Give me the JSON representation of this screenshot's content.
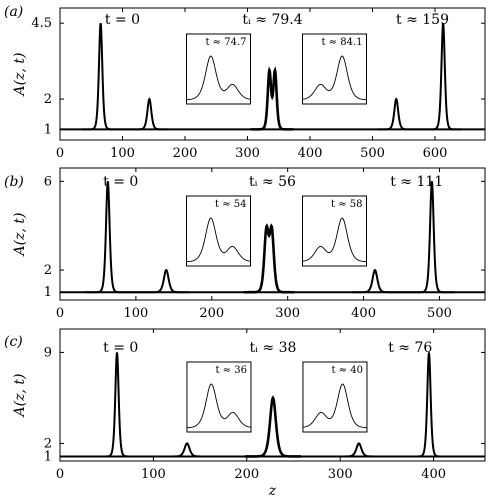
{
  "chart_data": [
    {
      "type": "line",
      "panel_label": "(a)",
      "ylabel": "A(z, t)",
      "xlabel": "",
      "xlim": [
        0,
        680
      ],
      "ylim": [
        0.65,
        5.0
      ],
      "xticks": [
        0,
        100,
        200,
        300,
        400,
        500,
        600
      ],
      "yticks": [
        1,
        2,
        4.5
      ],
      "ytick_labels": [
        "1",
        "2",
        "4.5"
      ],
      "annotations": [
        {
          "text": "t = 0",
          "x": 100
        },
        {
          "text": "tᵢ ≈ 79.4",
          "x": 340
        },
        {
          "text": "t ≈ 159",
          "x": 580
        }
      ],
      "series": [
        {
          "label": "t = 0",
          "peaks": [
            {
              "x": 65,
              "amp": 4.5,
              "width": 3.6
            },
            {
              "x": 143,
              "amp": 2.0,
              "width": 4.2
            }
          ]
        },
        {
          "label": "tᵢ ≈ 79.4",
          "peaks": [
            {
              "x": 335,
              "amp": 2.9,
              "width": 3.6
            },
            {
              "x": 344,
              "amp": 2.9,
              "width": 3.6
            }
          ]
        },
        {
          "label": "t ≈ 159",
          "peaks": [
            {
              "x": 538,
              "amp": 2.0,
              "width": 4.2
            },
            {
              "x": 613,
              "amp": 4.5,
              "width": 3.6
            }
          ]
        }
      ],
      "baseline": 1,
      "insets": [
        {
          "text": "t ≈ 74.7",
          "shape": "left-tall"
        },
        {
          "text": "t ≈ 84.1",
          "shape": "right-tall"
        }
      ]
    },
    {
      "type": "line",
      "panel_label": "(b)",
      "ylabel": "A(z, t)",
      "xlabel": "",
      "xlim": [
        0,
        560
      ],
      "ylim": [
        0.65,
        6.6
      ],
      "xticks": [
        0,
        100,
        200,
        300,
        400,
        500
      ],
      "yticks": [
        1,
        2,
        6
      ],
      "ytick_labels": [
        "1",
        "2",
        "6"
      ],
      "annotations": [
        {
          "text": "t = 0",
          "x": 80
        },
        {
          "text": "tᵢ ≈ 56",
          "x": 280
        },
        {
          "text": "t ≈ 111",
          "x": 470
        }
      ],
      "series": [
        {
          "label": "t = 0",
          "peaks": [
            {
              "x": 63,
              "amp": 6.0,
              "width": 3.2
            },
            {
              "x": 140,
              "amp": 2.0,
              "width": 4.2
            }
          ]
        },
        {
          "label": "tᵢ ≈ 56",
          "peaks": [
            {
              "x": 272,
              "amp": 3.7,
              "width": 3.8
            },
            {
              "x": 279,
              "amp": 3.7,
              "width": 3.8
            }
          ]
        },
        {
          "label": "t ≈ 111",
          "peaks": [
            {
              "x": 415,
              "amp": 2.0,
              "width": 4.2
            },
            {
              "x": 490,
              "amp": 6.0,
              "width": 3.2
            }
          ]
        }
      ],
      "baseline": 1,
      "insets": [
        {
          "text": "t ≈ 54",
          "shape": "left-tall"
        },
        {
          "text": "t ≈ 58",
          "shape": "right-tall"
        }
      ]
    },
    {
      "type": "line",
      "panel_label": "(c)",
      "ylabel": "A(z, t)",
      "xlabel": "z",
      "xlim": [
        0,
        455
      ],
      "ylim": [
        0.65,
        10.8
      ],
      "xticks": [
        0,
        100,
        200,
        300,
        400
      ],
      "yticks": [
        1,
        2,
        9
      ],
      "ytick_labels": [
        "1",
        "2",
        "9"
      ],
      "annotations": [
        {
          "text": "t = 0",
          "x": 65
        },
        {
          "text": "tᵢ ≈ 38",
          "x": 228
        },
        {
          "text": "t ≈ 76",
          "x": 375
        }
      ],
      "series": [
        {
          "label": "t = 0",
          "peaks": [
            {
              "x": 61,
              "amp": 9.0,
              "width": 2.4
            },
            {
              "x": 136,
              "amp": 2.0,
              "width": 3.6
            }
          ]
        },
        {
          "label": "tᵢ ≈ 38",
          "peaks": [
            {
              "x": 228,
              "amp": 5.5,
              "width": 4.2
            }
          ]
        },
        {
          "label": "t ≈ 76",
          "peaks": [
            {
              "x": 320,
              "amp": 2.0,
              "width": 3.6
            },
            {
              "x": 395,
              "amp": 9.0,
              "width": 2.4
            }
          ]
        }
      ],
      "baseline": 1,
      "insets": [
        {
          "text": "t ≈ 36",
          "shape": "left-tall"
        },
        {
          "text": "t ≈ 40",
          "shape": "right-tall"
        }
      ]
    }
  ]
}
